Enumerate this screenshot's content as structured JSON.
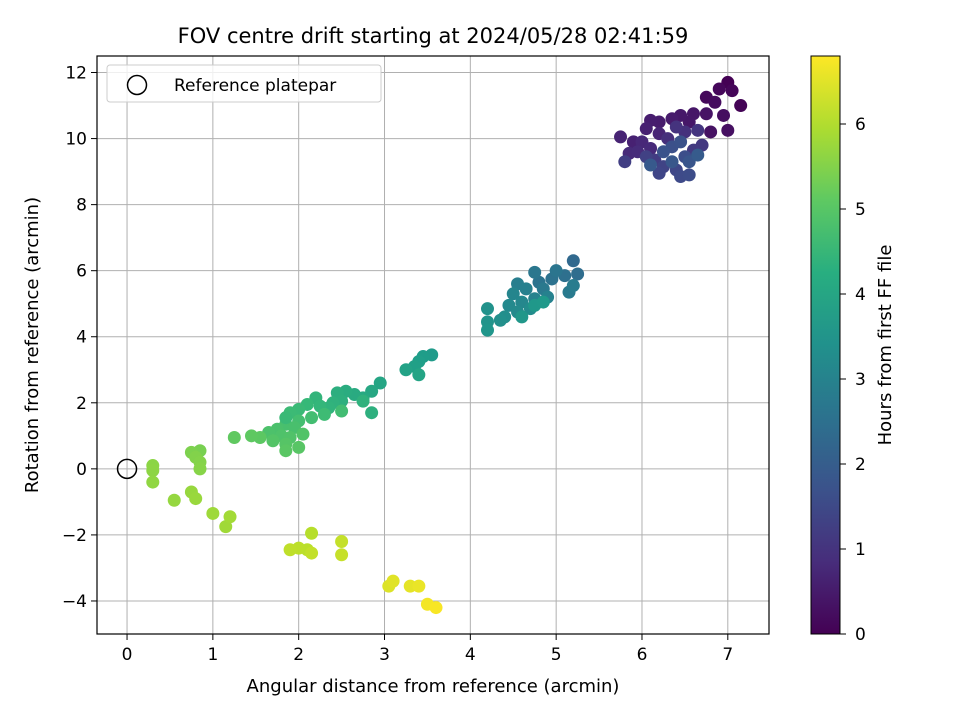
{
  "chart_data": {
    "type": "scatter",
    "title": "FOV centre drift starting at 2024/05/28 02:41:59",
    "xlabel": "Angular distance from reference (arcmin)",
    "ylabel": "Rotation from reference (arcmin)",
    "xlim": [
      -0.35,
      7.48
    ],
    "ylim": [
      -5.0,
      12.5
    ],
    "xticks": [
      0,
      1,
      2,
      3,
      4,
      5,
      6,
      7
    ],
    "yticks": [
      -4,
      -2,
      0,
      2,
      4,
      6,
      8,
      10,
      12
    ],
    "grid": true,
    "legend": {
      "placement": "top-left",
      "entries": [
        "Reference platepar"
      ]
    },
    "reference_point": {
      "x": 0,
      "y": 0
    },
    "colorbar": {
      "label": "Hours from first FF file",
      "range": [
        0,
        6.8
      ],
      "ticks": [
        0,
        1,
        2,
        3,
        4,
        5,
        6
      ],
      "colormap": "viridis"
    },
    "points": [
      {
        "x": 7.0,
        "y": 11.7,
        "h": 0.0
      },
      {
        "x": 7.15,
        "y": 11.0,
        "h": 0.05
      },
      {
        "x": 7.05,
        "y": 11.45,
        "h": 0.1
      },
      {
        "x": 6.9,
        "y": 11.5,
        "h": 0.12
      },
      {
        "x": 6.75,
        "y": 11.25,
        "h": 0.15
      },
      {
        "x": 6.85,
        "y": 11.1,
        "h": 0.2
      },
      {
        "x": 6.95,
        "y": 10.7,
        "h": 0.25
      },
      {
        "x": 7.0,
        "y": 10.25,
        "h": 0.3
      },
      {
        "x": 6.8,
        "y": 10.2,
        "h": 0.32
      },
      {
        "x": 6.75,
        "y": 10.75,
        "h": 0.35
      },
      {
        "x": 6.6,
        "y": 10.75,
        "h": 0.4
      },
      {
        "x": 6.55,
        "y": 10.5,
        "h": 0.42
      },
      {
        "x": 6.45,
        "y": 10.7,
        "h": 0.45
      },
      {
        "x": 6.35,
        "y": 10.6,
        "h": 0.5
      },
      {
        "x": 6.2,
        "y": 10.5,
        "h": 0.52
      },
      {
        "x": 6.1,
        "y": 10.55,
        "h": 0.55
      },
      {
        "x": 6.05,
        "y": 10.3,
        "h": 0.6
      },
      {
        "x": 5.9,
        "y": 9.9,
        "h": 0.62
      },
      {
        "x": 5.75,
        "y": 10.05,
        "h": 0.65
      },
      {
        "x": 6.2,
        "y": 10.15,
        "h": 0.7
      },
      {
        "x": 6.0,
        "y": 9.9,
        "h": 0.75
      },
      {
        "x": 6.1,
        "y": 9.7,
        "h": 0.8
      },
      {
        "x": 5.85,
        "y": 9.55,
        "h": 0.82
      },
      {
        "x": 5.95,
        "y": 9.6,
        "h": 0.85
      },
      {
        "x": 6.3,
        "y": 10.0,
        "h": 0.9
      },
      {
        "x": 6.5,
        "y": 10.2,
        "h": 0.95
      },
      {
        "x": 6.4,
        "y": 10.35,
        "h": 1.0
      },
      {
        "x": 6.65,
        "y": 10.25,
        "h": 1.05
      },
      {
        "x": 6.7,
        "y": 9.8,
        "h": 1.1
      },
      {
        "x": 6.6,
        "y": 9.65,
        "h": 1.15
      },
      {
        "x": 6.15,
        "y": 9.35,
        "h": 1.2
      },
      {
        "x": 5.8,
        "y": 9.3,
        "h": 1.25
      },
      {
        "x": 6.05,
        "y": 9.45,
        "h": 1.3
      },
      {
        "x": 6.25,
        "y": 9.15,
        "h": 1.35
      },
      {
        "x": 6.2,
        "y": 8.95,
        "h": 1.4
      },
      {
        "x": 6.4,
        "y": 9.05,
        "h": 1.45
      },
      {
        "x": 6.45,
        "y": 8.85,
        "h": 1.5
      },
      {
        "x": 6.55,
        "y": 8.9,
        "h": 1.55
      },
      {
        "x": 6.5,
        "y": 9.45,
        "h": 1.6
      },
      {
        "x": 6.35,
        "y": 9.75,
        "h": 1.65
      },
      {
        "x": 6.45,
        "y": 9.9,
        "h": 1.7
      },
      {
        "x": 6.25,
        "y": 9.6,
        "h": 1.75
      },
      {
        "x": 6.55,
        "y": 9.3,
        "h": 1.8
      },
      {
        "x": 6.35,
        "y": 9.3,
        "h": 1.85
      },
      {
        "x": 6.1,
        "y": 9.2,
        "h": 1.9
      },
      {
        "x": 6.65,
        "y": 9.5,
        "h": 1.95
      },
      {
        "x": 5.2,
        "y": 6.3,
        "h": 2.3
      },
      {
        "x": 5.25,
        "y": 5.9,
        "h": 2.4
      },
      {
        "x": 5.1,
        "y": 5.85,
        "h": 2.5
      },
      {
        "x": 4.95,
        "y": 5.75,
        "h": 2.55
      },
      {
        "x": 4.8,
        "y": 5.65,
        "h": 2.6
      },
      {
        "x": 5.0,
        "y": 6.0,
        "h": 2.65
      },
      {
        "x": 4.75,
        "y": 5.95,
        "h": 2.7
      },
      {
        "x": 4.85,
        "y": 5.45,
        "h": 2.75
      },
      {
        "x": 5.15,
        "y": 5.35,
        "h": 2.8
      },
      {
        "x": 5.2,
        "y": 5.55,
        "h": 2.85
      },
      {
        "x": 4.55,
        "y": 5.6,
        "h": 2.9
      },
      {
        "x": 4.65,
        "y": 5.45,
        "h": 2.95
      },
      {
        "x": 4.9,
        "y": 5.2,
        "h": 3.0
      },
      {
        "x": 4.75,
        "y": 5.15,
        "h": 3.05
      },
      {
        "x": 4.5,
        "y": 5.3,
        "h": 3.1
      },
      {
        "x": 4.6,
        "y": 5.05,
        "h": 3.15
      },
      {
        "x": 4.45,
        "y": 4.95,
        "h": 3.2
      },
      {
        "x": 4.55,
        "y": 4.75,
        "h": 3.25
      },
      {
        "x": 4.7,
        "y": 4.85,
        "h": 3.3
      },
      {
        "x": 4.4,
        "y": 4.6,
        "h": 3.35
      },
      {
        "x": 4.35,
        "y": 4.5,
        "h": 3.4
      },
      {
        "x": 4.2,
        "y": 4.85,
        "h": 3.45
      },
      {
        "x": 4.2,
        "y": 4.45,
        "h": 3.5
      },
      {
        "x": 4.2,
        "y": 4.2,
        "h": 3.55
      },
      {
        "x": 4.6,
        "y": 4.6,
        "h": 3.6
      },
      {
        "x": 4.75,
        "y": 4.95,
        "h": 3.62
      },
      {
        "x": 4.85,
        "y": 5.05,
        "h": 3.65
      },
      {
        "x": 3.55,
        "y": 3.45,
        "h": 3.7
      },
      {
        "x": 3.45,
        "y": 3.4,
        "h": 3.75
      },
      {
        "x": 3.4,
        "y": 3.25,
        "h": 3.8
      },
      {
        "x": 3.35,
        "y": 3.1,
        "h": 3.85
      },
      {
        "x": 3.25,
        "y": 3.0,
        "h": 3.9
      },
      {
        "x": 3.4,
        "y": 2.85,
        "h": 3.95
      },
      {
        "x": 2.95,
        "y": 2.6,
        "h": 4.0
      },
      {
        "x": 2.85,
        "y": 2.35,
        "h": 4.05
      },
      {
        "x": 2.75,
        "y": 2.15,
        "h": 4.1
      },
      {
        "x": 2.65,
        "y": 2.25,
        "h": 4.15
      },
      {
        "x": 2.55,
        "y": 2.35,
        "h": 4.2
      },
      {
        "x": 2.45,
        "y": 2.3,
        "h": 4.25
      },
      {
        "x": 2.5,
        "y": 2.05,
        "h": 4.3
      },
      {
        "x": 2.4,
        "y": 2.0,
        "h": 4.35
      },
      {
        "x": 2.35,
        "y": 1.85,
        "h": 4.4
      },
      {
        "x": 2.2,
        "y": 2.15,
        "h": 4.45
      },
      {
        "x": 2.25,
        "y": 1.9,
        "h": 4.5
      },
      {
        "x": 2.1,
        "y": 1.95,
        "h": 4.55
      },
      {
        "x": 2.0,
        "y": 1.8,
        "h": 4.6
      },
      {
        "x": 1.9,
        "y": 1.7,
        "h": 4.62
      },
      {
        "x": 2.3,
        "y": 1.65,
        "h": 4.65
      },
      {
        "x": 2.5,
        "y": 1.75,
        "h": 4.7
      },
      {
        "x": 2.15,
        "y": 1.55,
        "h": 4.72
      },
      {
        "x": 2.0,
        "y": 1.45,
        "h": 4.75
      },
      {
        "x": 1.85,
        "y": 1.35,
        "h": 4.78
      },
      {
        "x": 1.95,
        "y": 1.25,
        "h": 4.8
      },
      {
        "x": 1.75,
        "y": 1.2,
        "h": 4.82
      },
      {
        "x": 1.65,
        "y": 1.1,
        "h": 4.85
      },
      {
        "x": 1.8,
        "y": 1.0,
        "h": 4.88
      },
      {
        "x": 1.9,
        "y": 0.95,
        "h": 4.9
      },
      {
        "x": 2.05,
        "y": 1.05,
        "h": 4.92
      },
      {
        "x": 1.7,
        "y": 0.85,
        "h": 4.95
      },
      {
        "x": 1.85,
        "y": 0.75,
        "h": 4.97
      },
      {
        "x": 2.0,
        "y": 0.65,
        "h": 5.0
      },
      {
        "x": 1.85,
        "y": 0.55,
        "h": 5.02
      },
      {
        "x": 1.55,
        "y": 0.95,
        "h": 5.05
      },
      {
        "x": 1.45,
        "y": 1.0,
        "h": 5.08
      },
      {
        "x": 1.25,
        "y": 0.95,
        "h": 5.1
      },
      {
        "x": 2.85,
        "y": 1.7,
        "h": 4.3
      },
      {
        "x": 2.75,
        "y": 2.05,
        "h": 4.35
      },
      {
        "x": 1.85,
        "y": 1.55,
        "h": 4.6
      },
      {
        "x": 0.85,
        "y": 0.55,
        "h": 5.4
      },
      {
        "x": 0.75,
        "y": 0.5,
        "h": 5.45
      },
      {
        "x": 0.8,
        "y": 0.35,
        "h": 5.5
      },
      {
        "x": 0.85,
        "y": 0.2,
        "h": 5.52
      },
      {
        "x": 0.85,
        "y": 0.0,
        "h": 5.55
      },
      {
        "x": 0.3,
        "y": 0.1,
        "h": 5.6
      },
      {
        "x": 0.3,
        "y": -0.05,
        "h": 5.62
      },
      {
        "x": 0.3,
        "y": -0.4,
        "h": 5.65
      },
      {
        "x": 0.55,
        "y": -0.95,
        "h": 5.7
      },
      {
        "x": 0.75,
        "y": -0.7,
        "h": 5.72
      },
      {
        "x": 0.8,
        "y": -0.9,
        "h": 5.75
      },
      {
        "x": 1.0,
        "y": -1.35,
        "h": 5.8
      },
      {
        "x": 1.15,
        "y": -1.75,
        "h": 5.82
      },
      {
        "x": 1.2,
        "y": -1.45,
        "h": 5.85
      },
      {
        "x": 2.15,
        "y": -1.95,
        "h": 6.05
      },
      {
        "x": 2.1,
        "y": -2.45,
        "h": 6.1
      },
      {
        "x": 2.0,
        "y": -2.4,
        "h": 6.12
      },
      {
        "x": 1.9,
        "y": -2.45,
        "h": 6.15
      },
      {
        "x": 2.15,
        "y": -2.55,
        "h": 6.18
      },
      {
        "x": 2.5,
        "y": -2.2,
        "h": 6.2
      },
      {
        "x": 2.5,
        "y": -2.6,
        "h": 6.22
      },
      {
        "x": 3.05,
        "y": -3.55,
        "h": 6.45
      },
      {
        "x": 3.1,
        "y": -3.4,
        "h": 6.5
      },
      {
        "x": 3.3,
        "y": -3.55,
        "h": 6.55
      },
      {
        "x": 3.4,
        "y": -3.55,
        "h": 6.6
      },
      {
        "x": 3.5,
        "y": -4.1,
        "h": 6.7
      },
      {
        "x": 3.6,
        "y": -4.2,
        "h": 6.75
      }
    ]
  }
}
